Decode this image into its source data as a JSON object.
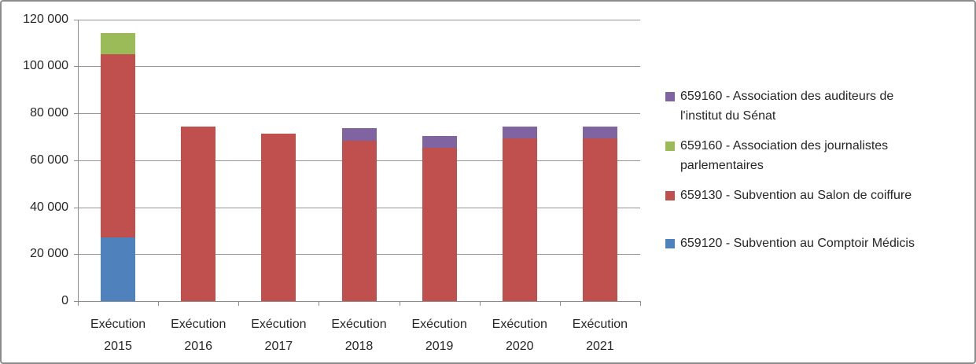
{
  "frame": {
    "background": "#FFFFFF",
    "border_color": "#8C8C8C",
    "gridline_color": "#969696",
    "axis_color": "#8C8C8C",
    "text_color": "#262626"
  },
  "chart_data": {
    "type": "bar",
    "stacked": true,
    "title": "",
    "xlabel": "",
    "ylabel": "",
    "grid": true,
    "ylim": [
      0,
      120000
    ],
    "categories": [
      "Exécution 2015",
      "Exécution 2016",
      "Exécution 2017",
      "Exécution 2018",
      "Exécution 2019",
      "Exécution 2020",
      "Exécution 2021"
    ],
    "series": [
      {
        "name": "659120 - Subvention au Comptoir Médicis",
        "color": "#4F81BD",
        "values": [
          27000,
          0,
          0,
          0,
          0,
          0,
          0
        ]
      },
      {
        "name": "659130 - Subvention au Salon de coiffure",
        "color": "#C0504D",
        "values": [
          78000,
          74400,
          71300,
          68200,
          65200,
          69300,
          69300
        ]
      },
      {
        "name": "659160 - Association des journalistes parlementaires",
        "color": "#9BBB59",
        "values": [
          9000,
          0,
          0,
          0,
          0,
          0,
          0
        ]
      },
      {
        "name": "659160 - Association des auditeurs de l'institut du Sénat",
        "color": "#8064A2",
        "values": [
          0,
          0,
          0,
          5300,
          5100,
          5100,
          5100
        ]
      }
    ],
    "y_ticks": [
      {
        "value": 0,
        "label": "0"
      },
      {
        "value": 20000,
        "label": "20 000"
      },
      {
        "value": 40000,
        "label": "40 000"
      },
      {
        "value": 60000,
        "label": "60 000"
      },
      {
        "value": 80000,
        "label": "80 000"
      },
      {
        "value": 100000,
        "label": "100 000"
      },
      {
        "value": 120000,
        "label": "120 000"
      }
    ],
    "legend_position": "right",
    "legend": [
      {
        "color": "#8064A2",
        "lines": [
          "659160 - Association des auditeurs de",
          "l'institut du Sénat"
        ]
      },
      {
        "color": "#9BBB59",
        "lines": [
          "659160 - Association des journalistes",
          "parlementaires"
        ]
      },
      {
        "color": "#C0504D",
        "lines": [
          "659130 - Subvention au Salon de coiffure"
        ]
      },
      {
        "color": "#4F81BD",
        "lines": [
          "659120 - Subvention au Comptoir Médicis"
        ]
      }
    ]
  }
}
